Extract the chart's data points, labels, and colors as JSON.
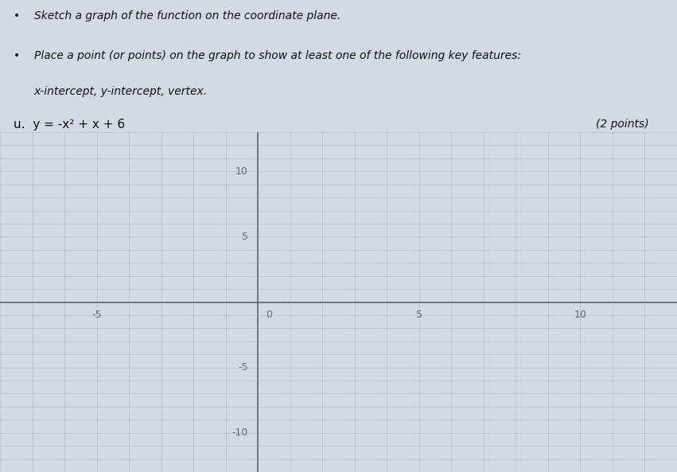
{
  "equation": "y = -x^2 + x + 6",
  "xmin": -8,
  "xmax": 13,
  "ymin": -13,
  "ymax": 13,
  "grid_step": 1,
  "xtick_labels": [
    [
      -5,
      "-5"
    ],
    [
      5,
      "5"
    ],
    [
      10,
      "10"
    ]
  ],
  "ytick_labels": [
    [
      10,
      "10"
    ],
    [
      5,
      "5"
    ],
    [
      -5,
      "-5"
    ],
    [
      -10,
      "-10"
    ]
  ],
  "origin_label": "0",
  "grid_color": "#8899bb",
  "grid_alpha": 0.45,
  "axis_color": "#666677",
  "axis_lw": 1.2,
  "bg_left_color": "#ccd4e0",
  "bg_right_color": "#dde4ec",
  "bg_full_color": "#d2dae5",
  "text_color": "#1a1a1a",
  "tick_fontsize": 9,
  "bullet_text": [
    "Sketch a graph of the function on the coordinate plane.",
    "Place a point (or points) on the graph to show at least one of the following key features:",
    "x-intercept, y-intercept, vertex."
  ],
  "problem_label": "u.",
  "problem_eq": "y = -x² + x + 6",
  "points_label": "(2 points)",
  "header_text_color": "#111111",
  "header_fontsize": 10
}
